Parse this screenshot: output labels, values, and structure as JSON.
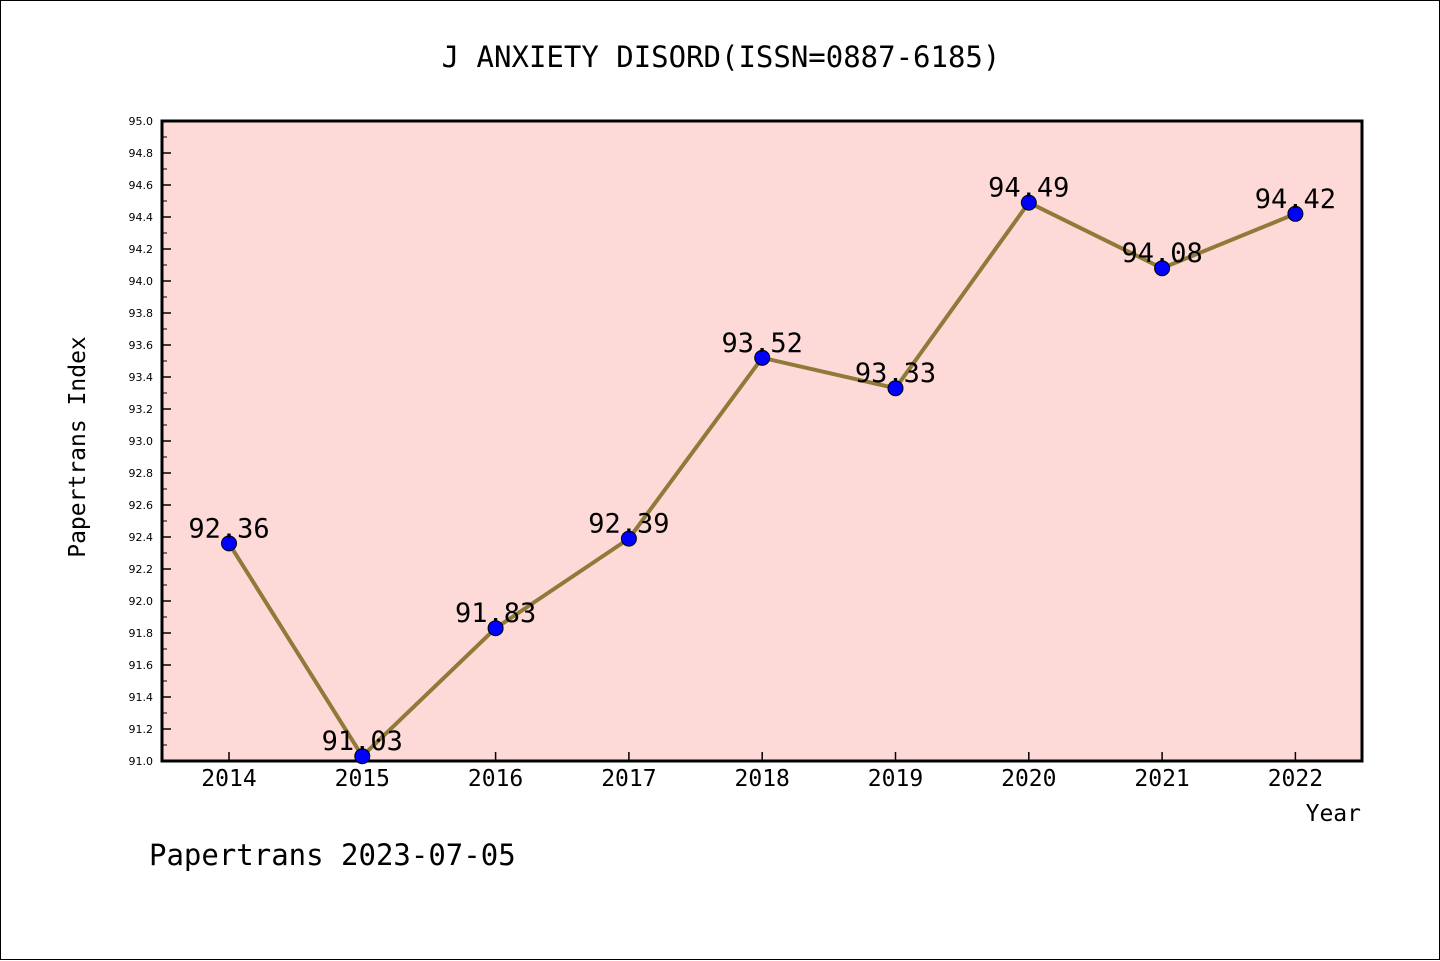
{
  "chart_data": {
    "type": "line",
    "title": "J ANXIETY DISORD(ISSN=0887-6185)",
    "xlabel": "Year",
    "ylabel": "Papertrans Index",
    "footer": "Papertrans 2023-07-05",
    "categories": [
      "2014",
      "2015",
      "2016",
      "2017",
      "2018",
      "2019",
      "2020",
      "2021",
      "2022"
    ],
    "series": [
      {
        "values": [
          92.36,
          91.03,
          91.83,
          92.39,
          93.52,
          93.33,
          94.49,
          94.08,
          94.42
        ],
        "labels": [
          "92.36",
          "91.03",
          "91.83",
          "92.39",
          "93.52",
          "93.33",
          "94.49",
          "94.08",
          "94.42"
        ]
      }
    ],
    "ylim": [
      91.0,
      95.0
    ],
    "yticks": [
      "91.0",
      "91.2",
      "91.4",
      "91.6",
      "91.8",
      "92.0",
      "92.2",
      "92.4",
      "92.6",
      "92.8",
      "93.0",
      "93.2",
      "93.4",
      "93.6",
      "93.8",
      "94.0",
      "94.2",
      "94.4",
      "94.6",
      "94.8",
      "95.0"
    ],
    "grid": false,
    "colors": {
      "plot_background": "#fddad8",
      "line": "#8f7a3a",
      "marker": "#0000ff",
      "axis": "#000000"
    }
  }
}
